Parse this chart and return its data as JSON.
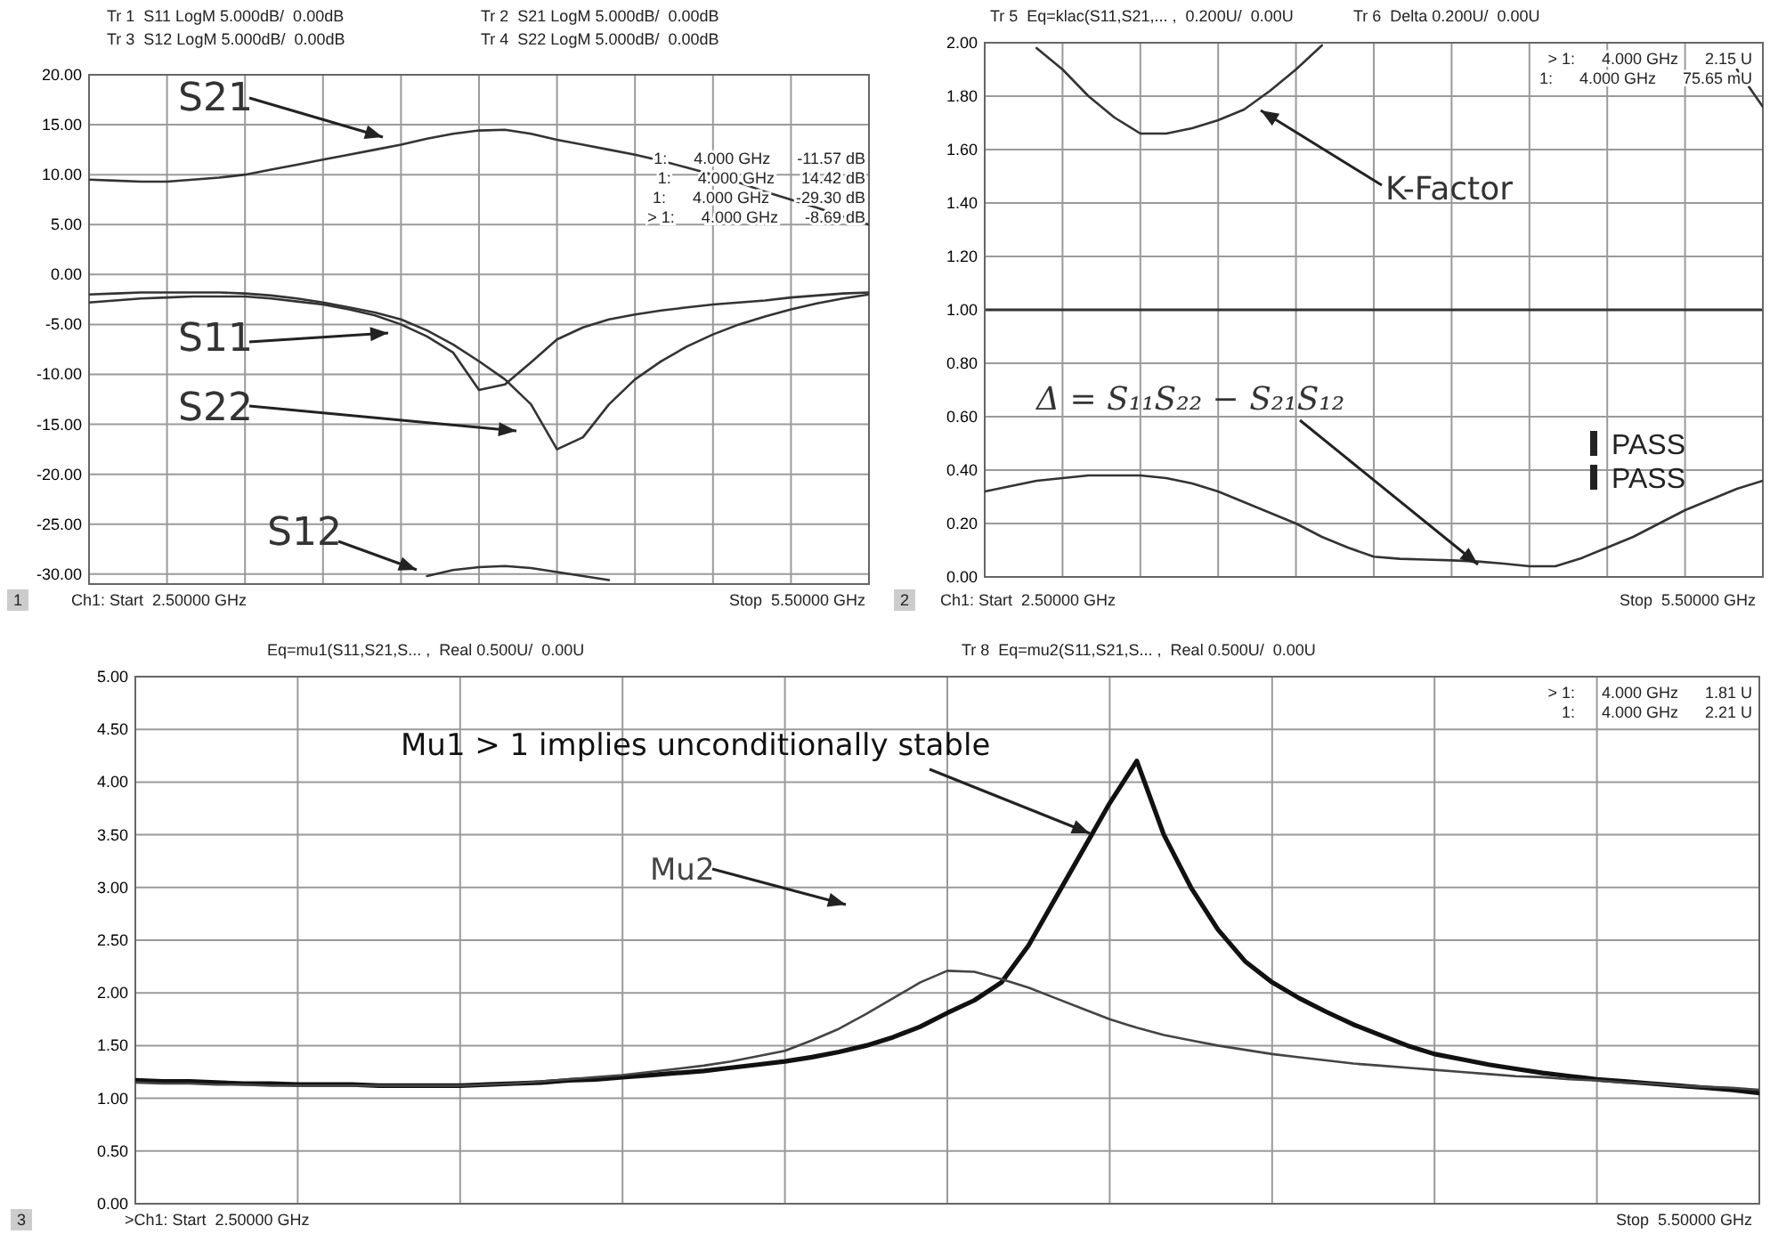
{
  "chart_data": [
    {
      "type": "line",
      "ylim": [
        -31,
        20
      ],
      "categories": [
        null,
        null,
        null,
        null,
        null,
        null,
        null,
        null,
        null,
        null,
        null,
        null,
        null,
        null,
        null,
        null,
        null,
        null,
        null,
        null,
        null,
        null,
        null,
        null,
        null,
        null,
        null,
        null,
        null,
        null,
        null
      ],
      "yticks": [
        {
          "value": 20,
          "label": "20.00"
        },
        {
          "value": 15,
          "label": "15.00"
        },
        {
          "value": 10,
          "label": "10.00"
        },
        {
          "value": 5,
          "label": "5.00"
        },
        {
          "value": 0,
          "label": "0.00"
        },
        {
          "value": -5,
          "label": "-5.00"
        },
        {
          "value": -10,
          "label": "-10.00"
        },
        {
          "value": -15,
          "label": "-15.00"
        },
        {
          "value": -20,
          "label": "-20.00"
        },
        {
          "value": -25,
          "label": "-25.00"
        },
        {
          "value": -30,
          "label": "-30.00"
        }
      ],
      "grid": true,
      "tick_labels": "y",
      "series": [
        {
          "name": "S21",
          "color": "#333333",
          "values": [
            9.5,
            9.4,
            9.3,
            9.3,
            9.5,
            9.7,
            10,
            10.5,
            11,
            11.5,
            12,
            12.5,
            13,
            13.6,
            14.1,
            14.42,
            14.5,
            14.1,
            13.5,
            13,
            12.5,
            12,
            11.4,
            10.7,
            10,
            9.2,
            8.3,
            7.5,
            6.7,
            5.8,
            5
          ]
        },
        {
          "name": "S11",
          "color": "#333333",
          "values": [
            -2.8,
            -2.6,
            -2.4,
            -2.3,
            -2.2,
            -2.2,
            -2.2,
            -2.4,
            -2.7,
            -3,
            -3.5,
            -4.1,
            -5,
            -6.2,
            -7.8,
            -11.57,
            -11,
            -8.8,
            -6.5,
            -5.3,
            -4.5,
            -4,
            -3.6,
            -3.3,
            -3,
            -2.8,
            -2.6,
            -2.3,
            -2.1,
            -1.9,
            -1.8
          ]
        },
        {
          "name": "S22",
          "color": "#333333",
          "values": [
            -2,
            -1.9,
            -1.8,
            -1.8,
            -1.8,
            -1.8,
            -1.9,
            -2.1,
            -2.4,
            -2.8,
            -3.3,
            -3.8,
            -4.5,
            -5.6,
            -7,
            -8.69,
            -10.5,
            -13,
            -17.5,
            -16.3,
            -13,
            -10.5,
            -8.7,
            -7.2,
            -6,
            -5,
            -4.2,
            -3.5,
            -2.9,
            -2.4,
            -2
          ]
        },
        {
          "name": "S12",
          "color": "#333333",
          "values": [
            null,
            null,
            null,
            null,
            null,
            null,
            null,
            null,
            null,
            null,
            null,
            null,
            null,
            -30.2,
            -29.6,
            -29.3,
            -29.2,
            -29.4,
            -29.8,
            -30.2,
            -30.6,
            null,
            null,
            null,
            null,
            null,
            null,
            null,
            null,
            null,
            null
          ]
        }
      ],
      "annotations": [
        "Tr 1  S11 LogM 5.000dB/  0.00dB",
        "Tr 3  S12 LogM 5.000dB/  0.00dB",
        "Tr 2  S21 LogM 5.000dB/  0.00dB",
        "Tr 4  S22 LogM 5.000dB/  0.00dB",
        "1:      4.000 GHz      -11.57 dB",
        "1:      4.000 GHz      14.42 dB",
        "1:      4.000 GHz      -29.30 dB",
        "> 1:      4.000 GHz      -8.69 dB",
        "1",
        "Ch1: Start  2.50000 GHz",
        "Stop  5.50000 GHz"
      ]
    },
    {
      "type": "line",
      "ylim": [
        0,
        2
      ],
      "categories": [
        null,
        null,
        null,
        null,
        null,
        null,
        null,
        null,
        null,
        null,
        null,
        null,
        null,
        null,
        null,
        null,
        null,
        null,
        null,
        null,
        null,
        null,
        null,
        null,
        null,
        null,
        null,
        null,
        null,
        null,
        null
      ],
      "yticks": [
        {
          "value": 0,
          "label": "0.00"
        },
        {
          "value": 0.2,
          "label": "0.20"
        },
        {
          "value": 0.4,
          "label": "0.40"
        },
        {
          "value": 0.6,
          "label": "0.60"
        },
        {
          "value": 0.8,
          "label": "0.80"
        },
        {
          "value": 1,
          "label": "1.00"
        },
        {
          "value": 1.2,
          "label": "1.20"
        },
        {
          "value": 1.4,
          "label": "1.40"
        },
        {
          "value": 1.6,
          "label": "1.60"
        },
        {
          "value": 1.8,
          "label": "1.80"
        },
        {
          "value": 2,
          "label": "2.00"
        }
      ],
      "grid": true,
      "tick_labels": "y",
      "ref_lines": [
        {
          "axis": "y",
          "value": 1,
          "color": "#333333"
        }
      ],
      "series": [
        {
          "name": "K-Factor",
          "color": "#333333",
          "values": [
            null,
            null,
            1.98,
            1.9,
            1.8,
            1.72,
            1.66,
            1.66,
            1.68,
            1.71,
            1.75,
            1.82,
            1.9,
            1.99,
            null,
            null,
            null,
            null,
            null,
            null,
            null,
            null,
            null,
            null,
            null,
            null,
            null,
            null,
            null,
            1.9,
            1.76
          ]
        },
        {
          "name": "Δ = S₁₁S₂₂ − S₂₁S₁₂",
          "color": "#333333",
          "values": [
            0.32,
            0.34,
            0.36,
            0.37,
            0.38,
            0.38,
            0.38,
            0.37,
            0.35,
            0.32,
            0.28,
            0.24,
            0.2,
            0.15,
            0.11,
            0.076,
            0.068,
            0.065,
            0.062,
            0.058,
            0.05,
            0.04,
            0.04,
            0.07,
            0.11,
            0.15,
            0.2,
            0.25,
            0.29,
            0.33,
            0.36
          ]
        }
      ],
      "annotations": [
        "Tr 5  Eq=klac(S11,S21,... ,  0.200U/  0.00U",
        "Tr 6  Delta 0.200U/  0.00U",
        "> 1:      4.000 GHz      2.15 U",
        "1:      4.000 GHz      75.65 mU",
        "PASS",
        "PASS",
        "2",
        "Ch1: Start  2.50000 GHz",
        "Stop  5.50000 GHz"
      ]
    },
    {
      "type": "line",
      "ylim": [
        0,
        5
      ],
      "categories": [
        null,
        null,
        null,
        null,
        null,
        null,
        null,
        null,
        null,
        null,
        null,
        null,
        null,
        null,
        null,
        null,
        null,
        null,
        null,
        null,
        null,
        null,
        null,
        null,
        null,
        null,
        null,
        null,
        null,
        null,
        null,
        null,
        null,
        null,
        null,
        null,
        null,
        null,
        null,
        null,
        null,
        null,
        null,
        null,
        null,
        null,
        null,
        null,
        null,
        null,
        null,
        null,
        null,
        null,
        null,
        null,
        null,
        null,
        null,
        null,
        null
      ],
      "yticks": [
        {
          "value": 0,
          "label": "0.00"
        },
        {
          "value": 0.5,
          "label": "0.50"
        },
        {
          "value": 1,
          "label": "1.00"
        },
        {
          "value": 1.5,
          "label": "1.50"
        },
        {
          "value": 2,
          "label": "2.00"
        },
        {
          "value": 2.5,
          "label": "2.50"
        },
        {
          "value": 3,
          "label": "3.00"
        },
        {
          "value": 3.5,
          "label": "3.50"
        },
        {
          "value": 4,
          "label": "4.00"
        },
        {
          "value": 4.5,
          "label": "4.50"
        },
        {
          "value": 5,
          "label": "5.00"
        }
      ],
      "grid": true,
      "tick_labels": "y",
      "series": [
        {
          "name": "Mu1 > 1 implies unconditionally stable",
          "color": "#111111",
          "values": [
            1.17,
            1.16,
            1.16,
            1.15,
            1.14,
            1.14,
            1.13,
            1.13,
            1.13,
            1.12,
            1.12,
            1.12,
            1.12,
            1.13,
            1.14,
            1.15,
            1.17,
            1.18,
            1.2,
            1.22,
            1.24,
            1.26,
            1.29,
            1.32,
            1.35,
            1.39,
            1.44,
            1.5,
            1.58,
            1.68,
            1.81,
            1.93,
            2.1,
            2.45,
            2.9,
            3.35,
            3.8,
            4.2,
            3.5,
            3.0,
            2.6,
            2.3,
            2.1,
            1.95,
            1.82,
            1.7,
            1.6,
            1.5,
            1.42,
            1.37,
            1.32,
            1.28,
            1.24,
            1.21,
            1.18,
            1.16,
            1.14,
            1.12,
            1.1,
            1.08,
            1.05
          ]
        },
        {
          "name": "Mu2",
          "color": "#444444",
          "values": [
            1.15,
            1.14,
            1.14,
            1.13,
            1.13,
            1.12,
            1.12,
            1.12,
            1.12,
            1.12,
            1.12,
            1.12,
            1.12,
            1.13,
            1.14,
            1.16,
            1.18,
            1.2,
            1.22,
            1.25,
            1.28,
            1.31,
            1.35,
            1.4,
            1.45,
            1.55,
            1.66,
            1.8,
            1.95,
            2.1,
            2.21,
            2.2,
            2.13,
            2.05,
            1.95,
            1.85,
            1.75,
            1.67,
            1.6,
            1.55,
            1.5,
            1.46,
            1.42,
            1.39,
            1.36,
            1.33,
            1.31,
            1.29,
            1.27,
            1.25,
            1.23,
            1.21,
            1.2,
            1.18,
            1.17,
            1.15,
            1.14,
            1.12,
            1.11,
            1.1,
            1.08
          ]
        }
      ],
      "annotations": [
        "Eq=mu1(S11,S21,S... ,  Real 0.500U/  0.00U",
        "Tr 8  Eq=mu2(S11,S21,S... ,  Real 0.500U/  0.00U",
        "> 1:      4.000 GHz      1.81 U",
        "1:      4.000 GHz      2.21 U",
        "3",
        ">Ch1: Start  2.50000 GHz",
        "Stop  5.50000 GHz"
      ]
    }
  ]
}
